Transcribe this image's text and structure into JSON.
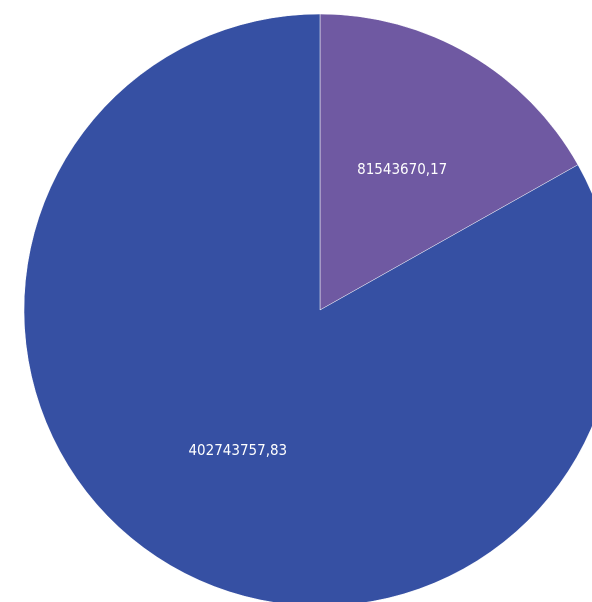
{
  "chart_data": {
    "type": "pie",
    "slices": [
      {
        "value": 81543670.17,
        "label": "81543670,17",
        "color": "#6f59a2"
      },
      {
        "value": 402743757.83,
        "label": "402743757,83",
        "color": "#3650a3"
      }
    ],
    "start_angle_deg": 0,
    "direction": "clockwise",
    "legend": "none"
  }
}
